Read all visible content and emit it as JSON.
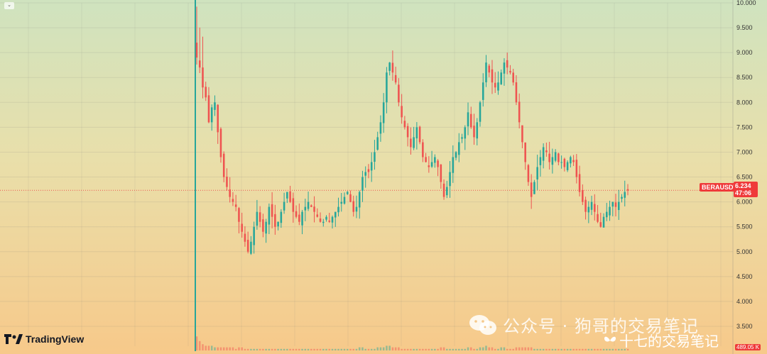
{
  "ui": {
    "symbol": "BERAUSDT",
    "last_price": "6.234",
    "countdown": "47:06",
    "volume_label": "489.05 K",
    "brand": "TradingView",
    "watermark": "公众号 · 狗哥的交易笔记",
    "watermark_small": "十七的交易笔记",
    "collapse_icon": "chevron-down-icon"
  },
  "colors": {
    "up": "#26a69a",
    "down": "#ef5350",
    "price_line": "#ef5350",
    "listing_line": "#26a69a"
  },
  "chart_data": {
    "type": "candlestick",
    "title": "",
    "xlabel": "",
    "ylabel": "",
    "ylim": [
      3.0,
      10.0
    ],
    "y_ticks": [
      "10.000",
      "9.500",
      "9.000",
      "8.500",
      "8.000",
      "7.500",
      "7.000",
      "6.500",
      "6.000",
      "5.500",
      "5.000",
      "4.500",
      "4.000",
      "3.500"
    ],
    "last_price": 6.234,
    "grid": true,
    "close_series": [
      8.9,
      8.7,
      8.3,
      8.1,
      7.6,
      7.9,
      8.0,
      7.4,
      6.9,
      6.5,
      6.3,
      6.1,
      6.0,
      5.9,
      5.6,
      5.4,
      5.2,
      5.0,
      5.2,
      5.5,
      5.8,
      5.6,
      5.4,
      5.6,
      5.9,
      5.7,
      5.5,
      5.6,
      5.8,
      6.0,
      6.2,
      6.0,
      5.8,
      5.7,
      5.6,
      5.8,
      5.9,
      6.0,
      5.9,
      5.8,
      5.7,
      5.6,
      5.6,
      5.7,
      5.6,
      5.7,
      5.8,
      5.9,
      6.0,
      6.1,
      6.2,
      6.0,
      5.8,
      5.9,
      6.2,
      6.5,
      6.6,
      6.6,
      6.8,
      7.0,
      7.3,
      7.6,
      8.0,
      8.6,
      8.8,
      8.6,
      8.4,
      8.0,
      7.7,
      7.5,
      7.3,
      7.1,
      7.3,
      7.5,
      7.2,
      6.9,
      6.8,
      6.7,
      6.8,
      6.9,
      6.7,
      6.4,
      6.1,
      6.3,
      6.6,
      6.9,
      7.0,
      7.2,
      7.3,
      7.5,
      7.8,
      7.5,
      7.3,
      7.6,
      8.0,
      8.4,
      8.8,
      8.6,
      8.4,
      8.3,
      8.4,
      8.6,
      8.8,
      8.7,
      8.6,
      8.4,
      8.0,
      7.6,
      7.2,
      6.8,
      6.4,
      6.1,
      6.4,
      6.7,
      6.9,
      7.1,
      7.0,
      6.8,
      6.9,
      7.0,
      6.8,
      6.8,
      6.7,
      6.8,
      6.9,
      6.8,
      6.5,
      6.2,
      6.0,
      5.8,
      5.9,
      6.0,
      5.8,
      5.6,
      5.5,
      5.7,
      5.8,
      5.9,
      6.0,
      5.9,
      6.0,
      6.1,
      6.2,
      6.23
    ],
    "volume_series": [
      9,
      6,
      4,
      3,
      3,
      3,
      2,
      2,
      2,
      2,
      2,
      2,
      2,
      1,
      2,
      2,
      1,
      1,
      1,
      1,
      1,
      1,
      1,
      1,
      1,
      1,
      1,
      1,
      1,
      1,
      1,
      1,
      1,
      1,
      1,
      1,
      1,
      1,
      1,
      1,
      1,
      1,
      1,
      1,
      1,
      1,
      1,
      1,
      1,
      1,
      1,
      1,
      1,
      1,
      2,
      2,
      1,
      1,
      1,
      1,
      2,
      2,
      2,
      3,
      3,
      2,
      2,
      2,
      1,
      1,
      1,
      1,
      1,
      1,
      1,
      1,
      1,
      1,
      1,
      1,
      1,
      2,
      2,
      1,
      1,
      1,
      1,
      1,
      1,
      1,
      2,
      2,
      1,
      1,
      2,
      2,
      3,
      2,
      2,
      1,
      1,
      2,
      2,
      1,
      1,
      1,
      2,
      2,
      2,
      2,
      2,
      2,
      1,
      1,
      1,
      1,
      1,
      1,
      1,
      1,
      1,
      1,
      1,
      1,
      1,
      1,
      1,
      1,
      1,
      1,
      1,
      1,
      1,
      1,
      1,
      1,
      1,
      1,
      1,
      1,
      1,
      1,
      1,
      1
    ]
  }
}
